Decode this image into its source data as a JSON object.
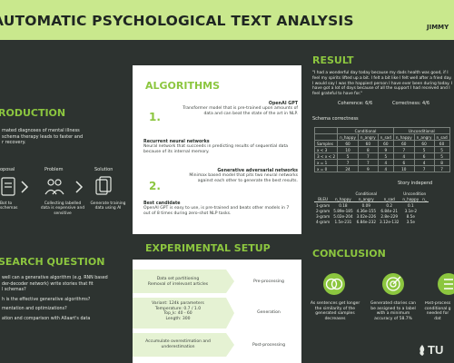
{
  "header": {
    "title": "AUTOMATIC PSYCHOLOGICAL TEXT ANALYSIS",
    "author": "JIMMY"
  },
  "introduction": {
    "heading": "RODUCTION",
    "text": [
      "mated diagnoses of mental illness",
      "schema therapy leads to faster and",
      "r recovery."
    ],
    "flow": [
      {
        "label": "oposal",
        "caption": "Bot to\nschemas"
      },
      {
        "label": "Problem",
        "caption": "Collecting labelled\ndata is expensive and\nsensitive"
      },
      {
        "label": "Solution",
        "caption": "Generate training\ndata using AI"
      }
    ]
  },
  "research": {
    "heading": "SEARCH QUESTION",
    "lines": [
      "well can a generative algorithm (e.g. RNN based",
      "der-decoder network) write stories that fit",
      "l schemas?",
      "",
      "h is the effective generative algorithms?",
      "",
      "mentation and optimizations?",
      "",
      "ation and comparison with Allaart's data"
    ]
  },
  "algorithms": {
    "heading": "ALGORITHMS",
    "items": [
      {
        "num": "1.",
        "title": "OpenAI GPT",
        "text": "Transformer model that is pre-trained upon amounts of data and can beat the state of the art in NLP."
      },
      {
        "num": "",
        "title": "Recurrent neural networks",
        "text": "Neural network that succeeds in predicting results of sequential data because of its internal memory."
      },
      {
        "num": "2.",
        "title": "Generative adversarial networks",
        "text": "Minimax based model that pits two neural networks against each other to generate the best results."
      },
      {
        "num": "",
        "title": "Best candidate",
        "text": "OpenAI GPT is easy to use, is pre-trained and beats other models in 7 out of 8 times during zero-shot NLP tasks."
      }
    ]
  },
  "experimental": {
    "heading": "EXPERIMENTAL SETUP",
    "rows": [
      {
        "left": "Data set partitioning\nRemoval of irrelevant articles",
        "right": "Pre-processing"
      },
      {
        "left": "Variant: 124k parameters\nTemperature: 0.7 / 1.0\nTop_k: 40 - 60\nLength: 300",
        "right": "Generation"
      },
      {
        "left": "Accumulate overestimation and\nunderestimation",
        "right": "Post-processing"
      }
    ]
  },
  "result": {
    "heading": "RESULT",
    "quote": "\"I had a wonderful day today because my dads health was good, if I feel my spirits lifted up a bit. I felt a bit like I felt well after a fried day. I would say I was the happiest person I have ever been during today. I have got a lot of days because of all the support I had received and I feel grateful to have for.\"",
    "coherence": "Coherence: 6/6",
    "correctness": "Correctness: 4/6",
    "schema_title": "Schema correctness",
    "schema_table": {
      "group_headers": [
        "",
        "Conditional",
        "Unconditional"
      ],
      "columns": [
        "",
        "n_happy",
        "n_angry",
        "n_sad",
        "n_happy",
        "n_angry",
        "n_sad"
      ],
      "rows": [
        [
          "Samples",
          "60",
          "60",
          "60",
          "60",
          "60",
          "60"
        ],
        [
          "x < 3",
          "10",
          "8",
          "9",
          "7",
          "5",
          "5"
        ],
        [
          "3 < x < 2",
          "5",
          "7",
          "5",
          "4",
          "6",
          "5"
        ],
        [
          "x = 1",
          "7",
          "7",
          "4",
          "6",
          "4",
          "8"
        ],
        [
          "x = 0",
          "24",
          "9",
          "4",
          "10",
          "7",
          "7"
        ]
      ]
    },
    "story_title": "Story independ",
    "story_table": {
      "group_headers": [
        "",
        "Conditional",
        "Uncondition"
      ],
      "columns": [
        "BLEU",
        "n_happy",
        "n_angry",
        "n_sad",
        "n_happy",
        "n_"
      ],
      "rows": [
        [
          "1-gram",
          "0.18",
          "0.09",
          "0.2",
          "0.1",
          ""
        ],
        [
          "2-gram",
          "5.89e-185",
          "4.36e-155",
          "6.84e-21",
          "3.1e-2",
          ""
        ],
        [
          "3-gram",
          "5.02e-204",
          "3.02e-226",
          "2.8e-229",
          "8.5e",
          ""
        ],
        [
          "4-gram",
          "1.5e-231",
          "6.84e-232",
          "3.12e-132",
          "3.5e",
          ""
        ]
      ]
    }
  },
  "conclusion": {
    "heading": "CONCLUSION",
    "items": [
      {
        "icon": "circles-icon",
        "text": "As sentences get longer\nthe similarity of the\ngenerated samples\ndecreases"
      },
      {
        "icon": "target-icon",
        "text": "Generated stories can\nbe assigned to a label\nwith a minimum\naccuracy of 58.7%"
      },
      {
        "icon": "chart-icon",
        "text": "Post-process\nconditional g\nneeded for\ndat"
      }
    ],
    "logo": "TU"
  },
  "colors": {
    "accent": "#8cc63f",
    "header": "#c9e88d",
    "bg": "#2d3330"
  }
}
